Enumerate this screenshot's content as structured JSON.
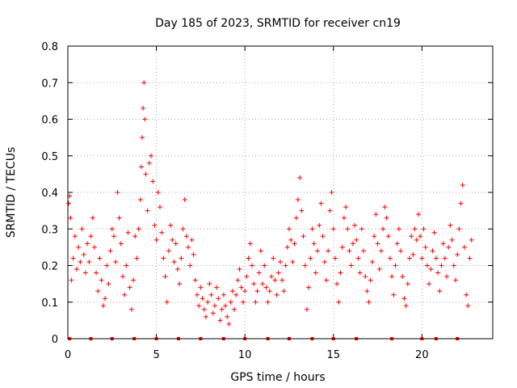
{
  "chart_data": {
    "type": "scatter",
    "title": "Day 185 of 2023, SRMTID for receiver cn19",
    "xlabel": "GPS time / hours",
    "ylabel": "SRMTID / TECUs",
    "xlim": [
      0,
      24
    ],
    "ylim": [
      0,
      0.8
    ],
    "xticks": [
      0,
      5,
      10,
      15,
      20
    ],
    "yticks": [
      0,
      0.1,
      0.2,
      0.3,
      0.4,
      0.5,
      0.6,
      0.7,
      0.8
    ],
    "grid": true,
    "marker": "+",
    "color": "#ff0000",
    "series": [
      {
        "name": "SRMTID",
        "points": [
          [
            0.05,
            0.37
          ],
          [
            0.1,
            0.39
          ],
          [
            0.15,
            0.33
          ],
          [
            0.2,
            0.16
          ],
          [
            0.3,
            0.22
          ],
          [
            0.4,
            0.28
          ],
          [
            0.5,
            0.19
          ],
          [
            0.6,
            0.25
          ],
          [
            0.7,
            0.21
          ],
          [
            0.8,
            0.3
          ],
          [
            0.9,
            0.23
          ],
          [
            1.0,
            0.18
          ],
          [
            1.1,
            0.26
          ],
          [
            1.2,
            0.21
          ],
          [
            1.3,
            0.28
          ],
          [
            1.4,
            0.33
          ],
          [
            1.5,
            0.25
          ],
          [
            1.6,
            0.18
          ],
          [
            1.7,
            0.13
          ],
          [
            1.8,
            0.22
          ],
          [
            1.9,
            0.16
          ],
          [
            2.0,
            0.09
          ],
          [
            2.1,
            0.11
          ],
          [
            2.2,
            0.2
          ],
          [
            2.3,
            0.15
          ],
          [
            2.4,
            0.24
          ],
          [
            2.5,
            0.3
          ],
          [
            2.6,
            0.28
          ],
          [
            2.7,
            0.21
          ],
          [
            2.8,
            0.4
          ],
          [
            2.9,
            0.33
          ],
          [
            3.0,
            0.26
          ],
          [
            3.1,
            0.17
          ],
          [
            3.2,
            0.12
          ],
          [
            3.3,
            0.2
          ],
          [
            3.4,
            0.29
          ],
          [
            3.5,
            0.14
          ],
          [
            3.6,
            0.08
          ],
          [
            3.7,
            0.16
          ],
          [
            3.8,
            0.28
          ],
          [
            3.9,
            0.22
          ],
          [
            4.0,
            0.3
          ],
          [
            4.1,
            0.38
          ],
          [
            4.15,
            0.47
          ],
          [
            4.2,
            0.55
          ],
          [
            4.25,
            0.63
          ],
          [
            4.3,
            0.7
          ],
          [
            4.35,
            0.6
          ],
          [
            4.4,
            0.45
          ],
          [
            4.5,
            0.35
          ],
          [
            4.6,
            0.48
          ],
          [
            4.7,
            0.5
          ],
          [
            4.8,
            0.43
          ],
          [
            4.9,
            0.31
          ],
          [
            5.0,
            0.27
          ],
          [
            5.1,
            0.4
          ],
          [
            5.2,
            0.36
          ],
          [
            5.3,
            0.29
          ],
          [
            5.4,
            0.22
          ],
          [
            5.5,
            0.17
          ],
          [
            5.6,
            0.1
          ],
          [
            5.7,
            0.24
          ],
          [
            5.8,
            0.31
          ],
          [
            5.9,
            0.27
          ],
          [
            6.0,
            0.21
          ],
          [
            6.1,
            0.26
          ],
          [
            6.2,
            0.19
          ],
          [
            6.3,
            0.15
          ],
          [
            6.4,
            0.22
          ],
          [
            6.5,
            0.3
          ],
          [
            6.6,
            0.38
          ],
          [
            6.7,
            0.28
          ],
          [
            6.8,
            0.25
          ],
          [
            6.9,
            0.2
          ],
          [
            7.0,
            0.27
          ],
          [
            7.1,
            0.23
          ],
          [
            7.2,
            0.16
          ],
          [
            7.3,
            0.12
          ],
          [
            7.4,
            0.09
          ],
          [
            7.5,
            0.14
          ],
          [
            7.6,
            0.11
          ],
          [
            7.7,
            0.08
          ],
          [
            7.8,
            0.06
          ],
          [
            7.9,
            0.1
          ],
          [
            8.0,
            0.15
          ],
          [
            8.1,
            0.12
          ],
          [
            8.2,
            0.07
          ],
          [
            8.3,
            0.09
          ],
          [
            8.4,
            0.14
          ],
          [
            8.5,
            0.11
          ],
          [
            8.6,
            0.05
          ],
          [
            8.7,
            0.08
          ],
          [
            8.8,
            0.12
          ],
          [
            8.9,
            0.09
          ],
          [
            9.0,
            0.06
          ],
          [
            9.1,
            0.04
          ],
          [
            9.2,
            0.1
          ],
          [
            9.3,
            0.13
          ],
          [
            9.4,
            0.08
          ],
          [
            9.5,
            0.12
          ],
          [
            9.6,
            0.16
          ],
          [
            9.7,
            0.19
          ],
          [
            9.8,
            0.14
          ],
          [
            9.9,
            0.1
          ],
          [
            10.0,
            0.13
          ],
          [
            10.1,
            0.17
          ],
          [
            10.2,
            0.22
          ],
          [
            10.3,
            0.26
          ],
          [
            10.4,
            0.2
          ],
          [
            10.5,
            0.15
          ],
          [
            10.6,
            0.1
          ],
          [
            10.7,
            0.13
          ],
          [
            10.8,
            0.18
          ],
          [
            10.9,
            0.24
          ],
          [
            11.0,
            0.15
          ],
          [
            11.1,
            0.2
          ],
          [
            11.2,
            0.14
          ],
          [
            11.3,
            0.1
          ],
          [
            11.4,
            0.13
          ],
          [
            11.5,
            0.17
          ],
          [
            11.6,
            0.22
          ],
          [
            11.7,
            0.16
          ],
          [
            11.8,
            0.12
          ],
          [
            11.9,
            0.18
          ],
          [
            12.0,
            0.21
          ],
          [
            12.1,
            0.16
          ],
          [
            12.2,
            0.13
          ],
          [
            12.3,
            0.2
          ],
          [
            12.4,
            0.25
          ],
          [
            12.5,
            0.3
          ],
          [
            12.6,
            0.27
          ],
          [
            12.7,
            0.21
          ],
          [
            12.8,
            0.26
          ],
          [
            12.9,
            0.33
          ],
          [
            13.0,
            0.38
          ],
          [
            13.1,
            0.44
          ],
          [
            13.2,
            0.35
          ],
          [
            13.3,
            0.28
          ],
          [
            13.4,
            0.2
          ],
          [
            13.5,
            0.08
          ],
          [
            13.6,
            0.14
          ],
          [
            13.7,
            0.22
          ],
          [
            13.8,
            0.3
          ],
          [
            13.9,
            0.26
          ],
          [
            14.0,
            0.18
          ],
          [
            14.1,
            0.24
          ],
          [
            14.2,
            0.31
          ],
          [
            14.3,
            0.37
          ],
          [
            14.4,
            0.28
          ],
          [
            14.5,
            0.21
          ],
          [
            14.6,
            0.16
          ],
          [
            14.7,
            0.24
          ],
          [
            14.8,
            0.35
          ],
          [
            14.9,
            0.4
          ],
          [
            15.0,
            0.3
          ],
          [
            15.1,
            0.22
          ],
          [
            15.2,
            0.15
          ],
          [
            15.3,
            0.1
          ],
          [
            15.4,
            0.18
          ],
          [
            15.5,
            0.25
          ],
          [
            15.6,
            0.33
          ],
          [
            15.7,
            0.36
          ],
          [
            15.8,
            0.3
          ],
          [
            15.9,
            0.24
          ],
          [
            16.0,
            0.2
          ],
          [
            16.1,
            0.26
          ],
          [
            16.2,
            0.31
          ],
          [
            16.3,
            0.27
          ],
          [
            16.4,
            0.22
          ],
          [
            16.5,
            0.18
          ],
          [
            16.6,
            0.3
          ],
          [
            16.7,
            0.24
          ],
          [
            16.8,
            0.17
          ],
          [
            16.9,
            0.13
          ],
          [
            17.0,
            0.1
          ],
          [
            17.1,
            0.16
          ],
          [
            17.2,
            0.21
          ],
          [
            17.3,
            0.28
          ],
          [
            17.4,
            0.34
          ],
          [
            17.5,
            0.26
          ],
          [
            17.6,
            0.19
          ],
          [
            17.7,
            0.24
          ],
          [
            17.8,
            0.3
          ],
          [
            17.9,
            0.36
          ],
          [
            18.0,
            0.33
          ],
          [
            18.1,
            0.28
          ],
          [
            18.2,
            0.22
          ],
          [
            18.3,
            0.17
          ],
          [
            18.4,
            0.12
          ],
          [
            18.5,
            0.2
          ],
          [
            18.6,
            0.26
          ],
          [
            18.7,
            0.3
          ],
          [
            18.8,
            0.24
          ],
          [
            18.9,
            0.17
          ],
          [
            19.0,
            0.11
          ],
          [
            19.1,
            0.09
          ],
          [
            19.2,
            0.15
          ],
          [
            19.3,
            0.22
          ],
          [
            19.4,
            0.28
          ],
          [
            19.5,
            0.23
          ],
          [
            19.6,
            0.3
          ],
          [
            19.7,
            0.27
          ],
          [
            19.8,
            0.34
          ],
          [
            19.9,
            0.28
          ],
          [
            20.0,
            0.22
          ],
          [
            20.1,
            0.3
          ],
          [
            20.2,
            0.25
          ],
          [
            20.3,
            0.2
          ],
          [
            20.4,
            0.15
          ],
          [
            20.5,
            0.19
          ],
          [
            20.6,
            0.24
          ],
          [
            20.7,
            0.29
          ],
          [
            20.8,
            0.22
          ],
          [
            20.9,
            0.18
          ],
          [
            21.0,
            0.13
          ],
          [
            21.1,
            0.2
          ],
          [
            21.2,
            0.26
          ],
          [
            21.3,
            0.22
          ],
          [
            21.4,
            0.17
          ],
          [
            21.5,
            0.25
          ],
          [
            21.6,
            0.31
          ],
          [
            21.7,
            0.27
          ],
          [
            21.8,
            0.2
          ],
          [
            21.9,
            0.16
          ],
          [
            22.0,
            0.23
          ],
          [
            22.1,
            0.3
          ],
          [
            22.2,
            0.37
          ],
          [
            22.3,
            0.42
          ],
          [
            22.4,
            0.25
          ],
          [
            22.5,
            0.12
          ],
          [
            22.6,
            0.09
          ],
          [
            22.7,
            0.22
          ],
          [
            22.8,
            0.27
          ]
        ]
      }
    ],
    "baseline_markers_x": [
      0.1,
      1.3,
      2.5,
      3.75,
      5.0,
      6.25,
      7.5,
      8.8,
      10.0,
      11.3,
      12.5,
      13.8,
      15.0,
      16.3,
      18.3,
      20.0,
      20.8,
      22.0
    ]
  }
}
